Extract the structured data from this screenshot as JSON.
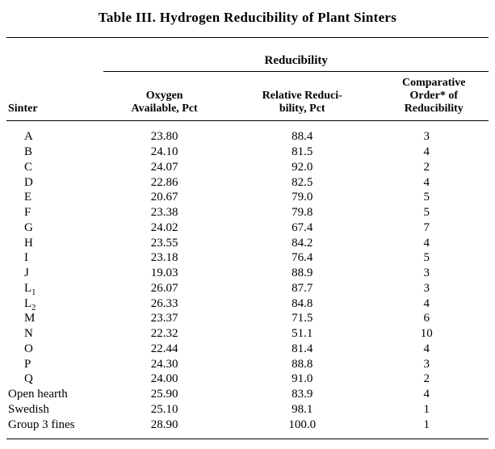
{
  "title": "Table III. Hydrogen Reducibility of Plant Sinters",
  "group_header": "Reducibility",
  "headers": {
    "sinter": "Sinter",
    "oxygen_l1": "Oxygen",
    "oxygen_l2": "Available, Pct",
    "relative_l1": "Relative Reduci-",
    "relative_l2": "bility, Pct",
    "order_l1": "Comparative",
    "order_l2": "Order* of",
    "order_l3": "Reducibility"
  },
  "rows": [
    {
      "sinter": "A",
      "oxygen": "23.80",
      "relative": "88.4",
      "order": "3",
      "indent": true
    },
    {
      "sinter": "B",
      "oxygen": "24.10",
      "relative": "81.5",
      "order": "4",
      "indent": true
    },
    {
      "sinter": "C",
      "oxygen": "24.07",
      "relative": "92.0",
      "order": "2",
      "indent": true
    },
    {
      "sinter": "D",
      "oxygen": "22.86",
      "relative": "82.5",
      "order": "4",
      "indent": true
    },
    {
      "sinter": "E",
      "oxygen": "20.67",
      "relative": "79.0",
      "order": "5",
      "indent": true
    },
    {
      "sinter": "F",
      "oxygen": "23.38",
      "relative": "79.8",
      "order": "5",
      "indent": true
    },
    {
      "sinter": "G",
      "oxygen": "24.02",
      "relative": "67.4",
      "order": "7",
      "indent": true
    },
    {
      "sinter": "H",
      "oxygen": "23.55",
      "relative": "84.2",
      "order": "4",
      "indent": true
    },
    {
      "sinter": "I",
      "oxygen": "23.18",
      "relative": "76.4",
      "order": "5",
      "indent": true
    },
    {
      "sinter": "J",
      "oxygen": "19.03",
      "relative": "88.9",
      "order": "3",
      "indent": true
    },
    {
      "sinter": "L",
      "sub": "1",
      "oxygen": "26.07",
      "relative": "87.7",
      "order": "3",
      "indent": true
    },
    {
      "sinter": "L",
      "sub": "2",
      "oxygen": "26.33",
      "relative": "84.8",
      "order": "4",
      "indent": true
    },
    {
      "sinter": "M",
      "oxygen": "23.37",
      "relative": "71.5",
      "order": "6",
      "indent": true
    },
    {
      "sinter": "N",
      "oxygen": "22.32",
      "relative": "51.1",
      "order": "10",
      "indent": true
    },
    {
      "sinter": "O",
      "oxygen": "22.44",
      "relative": "81.4",
      "order": "4",
      "indent": true
    },
    {
      "sinter": "P",
      "oxygen": "24.30",
      "relative": "88.8",
      "order": "3",
      "indent": true
    },
    {
      "sinter": "Q",
      "oxygen": "24.00",
      "relative": "91.0",
      "order": "2",
      "indent": true
    },
    {
      "sinter": "Open hearth",
      "oxygen": "25.90",
      "relative": "83.9",
      "order": "4",
      "indent": false
    },
    {
      "sinter": "Swedish",
      "oxygen": "25.10",
      "relative": "98.1",
      "order": "1",
      "indent": false
    },
    {
      "sinter": "Group 3 fines",
      "oxygen": "28.90",
      "relative": "100.0",
      "order": "1",
      "indent": false
    }
  ],
  "colors": {
    "background": "#ffffff",
    "text": "#000000",
    "rule": "#000000"
  }
}
